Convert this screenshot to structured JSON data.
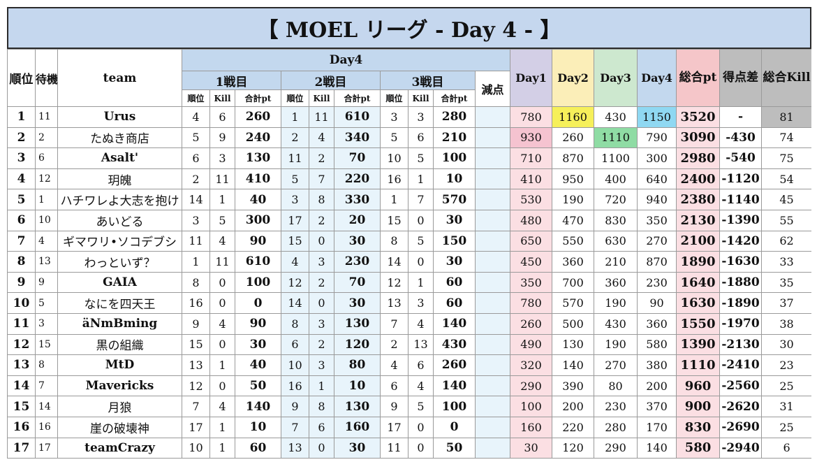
{
  "title": "【 MOEL リーグ - Day 4 - 】",
  "headers": {
    "rank": "順位",
    "wait": "待機",
    "team": "team",
    "day4_group": "Day4",
    "match1": "1戦目",
    "match2": "2戦目",
    "match3": "3戦目",
    "penalty": "減点",
    "sub_rank": "順位",
    "sub_kill": "Kill",
    "sub_total": "合計pt",
    "day1": "Day1",
    "day2": "Day2",
    "day3": "Day3",
    "day4": "Day4",
    "total_pt": "総合pt",
    "diff": "得点差",
    "total_kill": "総合Kill"
  },
  "colors": {
    "day2_highlight": "#f6f05a",
    "day3_highlight": "#8fdca4",
    "day4_highlight": "#8fd8f2",
    "day1_highlight": "#f5c3d0"
  },
  "rows": [
    {
      "rank": "1",
      "wait": "11",
      "team": "Urus",
      "bold": true,
      "m1r": "4",
      "m1k": "6",
      "m1p": "260",
      "m2r": "1",
      "m2k": "11",
      "m2p": "610",
      "m3r": "3",
      "m3k": "3",
      "m3p": "280",
      "pen": "",
      "d1": "780",
      "d2": "1160",
      "d3": "430",
      "d4": "1150",
      "tot": "3520",
      "diff": "-",
      "kill": "81"
    },
    {
      "rank": "2",
      "wait": "2",
      "team": "たぬき商店",
      "bold": false,
      "m1r": "5",
      "m1k": "9",
      "m1p": "240",
      "m2r": "2",
      "m2k": "4",
      "m2p": "340",
      "m3r": "5",
      "m3k": "6",
      "m3p": "210",
      "pen": "",
      "d1": "930",
      "d2": "260",
      "d3": "1110",
      "d4": "790",
      "tot": "3090",
      "diff": "-430",
      "kill": "74"
    },
    {
      "rank": "3",
      "wait": "6",
      "team": "Asalt'",
      "bold": true,
      "m1r": "6",
      "m1k": "3",
      "m1p": "130",
      "m2r": "11",
      "m2k": "2",
      "m2p": "70",
      "m3r": "10",
      "m3k": "5",
      "m3p": "100",
      "pen": "",
      "d1": "710",
      "d2": "870",
      "d3": "1100",
      "d4": "300",
      "tot": "2980",
      "diff": "-540",
      "kill": "75"
    },
    {
      "rank": "4",
      "wait": "12",
      "team": "玥魄",
      "bold": false,
      "m1r": "2",
      "m1k": "11",
      "m1p": "410",
      "m2r": "5",
      "m2k": "7",
      "m2p": "220",
      "m3r": "16",
      "m3k": "1",
      "m3p": "10",
      "pen": "",
      "d1": "410",
      "d2": "950",
      "d3": "400",
      "d4": "640",
      "tot": "2400",
      "diff": "-1120",
      "kill": "54"
    },
    {
      "rank": "5",
      "wait": "1",
      "team": "ハチワレよ大志を抱け",
      "bold": false,
      "m1r": "14",
      "m1k": "1",
      "m1p": "40",
      "m2r": "3",
      "m2k": "8",
      "m2p": "330",
      "m3r": "1",
      "m3k": "7",
      "m3p": "570",
      "pen": "",
      "d1": "530",
      "d2": "190",
      "d3": "720",
      "d4": "940",
      "tot": "2380",
      "diff": "-1140",
      "kill": "45"
    },
    {
      "rank": "6",
      "wait": "10",
      "team": "あいどる",
      "bold": false,
      "m1r": "3",
      "m1k": "5",
      "m1p": "300",
      "m2r": "17",
      "m2k": "2",
      "m2p": "20",
      "m3r": "15",
      "m3k": "0",
      "m3p": "30",
      "pen": "",
      "d1": "480",
      "d2": "470",
      "d3": "830",
      "d4": "350",
      "tot": "2130",
      "diff": "-1390",
      "kill": "55"
    },
    {
      "rank": "7",
      "wait": "4",
      "team": "ギマワリ•ソコデブシ",
      "bold": false,
      "m1r": "11",
      "m1k": "4",
      "m1p": "90",
      "m2r": "15",
      "m2k": "0",
      "m2p": "30",
      "m3r": "8",
      "m3k": "5",
      "m3p": "150",
      "pen": "",
      "d1": "650",
      "d2": "550",
      "d3": "630",
      "d4": "270",
      "tot": "2100",
      "diff": "-1420",
      "kill": "62"
    },
    {
      "rank": "8",
      "wait": "13",
      "team": "わっといず？",
      "bold": false,
      "m1r": "1",
      "m1k": "11",
      "m1p": "610",
      "m2r": "4",
      "m2k": "3",
      "m2p": "230",
      "m3r": "14",
      "m3k": "0",
      "m3p": "30",
      "pen": "",
      "d1": "450",
      "d2": "360",
      "d3": "210",
      "d4": "870",
      "tot": "1890",
      "diff": "-1630",
      "kill": "33"
    },
    {
      "rank": "9",
      "wait": "9",
      "team": "GAIA",
      "bold": true,
      "m1r": "8",
      "m1k": "0",
      "m1p": "100",
      "m2r": "12",
      "m2k": "2",
      "m2p": "70",
      "m3r": "12",
      "m3k": "1",
      "m3p": "60",
      "pen": "",
      "d1": "350",
      "d2": "700",
      "d3": "360",
      "d4": "230",
      "tot": "1640",
      "diff": "-1880",
      "kill": "35"
    },
    {
      "rank": "10",
      "wait": "5",
      "team": "なにを四天王",
      "bold": false,
      "m1r": "16",
      "m1k": "0",
      "m1p": "0",
      "m2r": "14",
      "m2k": "0",
      "m2p": "30",
      "m3r": "13",
      "m3k": "3",
      "m3p": "60",
      "pen": "",
      "d1": "780",
      "d2": "570",
      "d3": "190",
      "d4": "90",
      "tot": "1630",
      "diff": "-1890",
      "kill": "37"
    },
    {
      "rank": "11",
      "wait": "3",
      "team": "äNmBming",
      "bold": true,
      "m1r": "9",
      "m1k": "4",
      "m1p": "90",
      "m2r": "8",
      "m2k": "3",
      "m2p": "130",
      "m3r": "7",
      "m3k": "4",
      "m3p": "140",
      "pen": "",
      "d1": "260",
      "d2": "500",
      "d3": "430",
      "d4": "360",
      "tot": "1550",
      "diff": "-1970",
      "kill": "38"
    },
    {
      "rank": "12",
      "wait": "15",
      "team": "黒の組織",
      "bold": false,
      "m1r": "15",
      "m1k": "0",
      "m1p": "30",
      "m2r": "6",
      "m2k": "2",
      "m2p": "120",
      "m3r": "2",
      "m3k": "13",
      "m3p": "430",
      "pen": "",
      "d1": "490",
      "d2": "130",
      "d3": "190",
      "d4": "580",
      "tot": "1390",
      "diff": "-2130",
      "kill": "30"
    },
    {
      "rank": "13",
      "wait": "8",
      "team": "MtD",
      "bold": true,
      "m1r": "13",
      "m1k": "1",
      "m1p": "40",
      "m2r": "10",
      "m2k": "3",
      "m2p": "80",
      "m3r": "4",
      "m3k": "6",
      "m3p": "260",
      "pen": "",
      "d1": "320",
      "d2": "140",
      "d3": "270",
      "d4": "380",
      "tot": "1110",
      "diff": "-2410",
      "kill": "23"
    },
    {
      "rank": "14",
      "wait": "7",
      "team": "Mavericks",
      "bold": true,
      "m1r": "12",
      "m1k": "0",
      "m1p": "50",
      "m2r": "16",
      "m2k": "1",
      "m2p": "10",
      "m3r": "6",
      "m3k": "4",
      "m3p": "140",
      "pen": "",
      "d1": "290",
      "d2": "390",
      "d3": "80",
      "d4": "200",
      "tot": "960",
      "diff": "-2560",
      "kill": "25"
    },
    {
      "rank": "15",
      "wait": "14",
      "team": "月狼",
      "bold": false,
      "m1r": "7",
      "m1k": "4",
      "m1p": "140",
      "m2r": "9",
      "m2k": "8",
      "m2p": "130",
      "m3r": "9",
      "m3k": "5",
      "m3p": "100",
      "pen": "",
      "d1": "100",
      "d2": "200",
      "d3": "230",
      "d4": "370",
      "tot": "900",
      "diff": "-2620",
      "kill": "31"
    },
    {
      "rank": "16",
      "wait": "16",
      "team": "崖の破壊神",
      "bold": false,
      "m1r": "17",
      "m1k": "1",
      "m1p": "10",
      "m2r": "7",
      "m2k": "6",
      "m2p": "160",
      "m3r": "17",
      "m3k": "0",
      "m3p": "0",
      "pen": "",
      "d1": "160",
      "d2": "220",
      "d3": "280",
      "d4": "170",
      "tot": "830",
      "diff": "-2690",
      "kill": "25"
    },
    {
      "rank": "17",
      "wait": "17",
      "team": "teamCrazy",
      "bold": true,
      "m1r": "10",
      "m1k": "1",
      "m1p": "60",
      "m2r": "13",
      "m2k": "0",
      "m2p": "30",
      "m3r": "11",
      "m3k": "0",
      "m3p": "50",
      "pen": "",
      "d1": "30",
      "d2": "120",
      "d3": "290",
      "d4": "140",
      "tot": "580",
      "diff": "-2940",
      "kill": "6"
    }
  ]
}
